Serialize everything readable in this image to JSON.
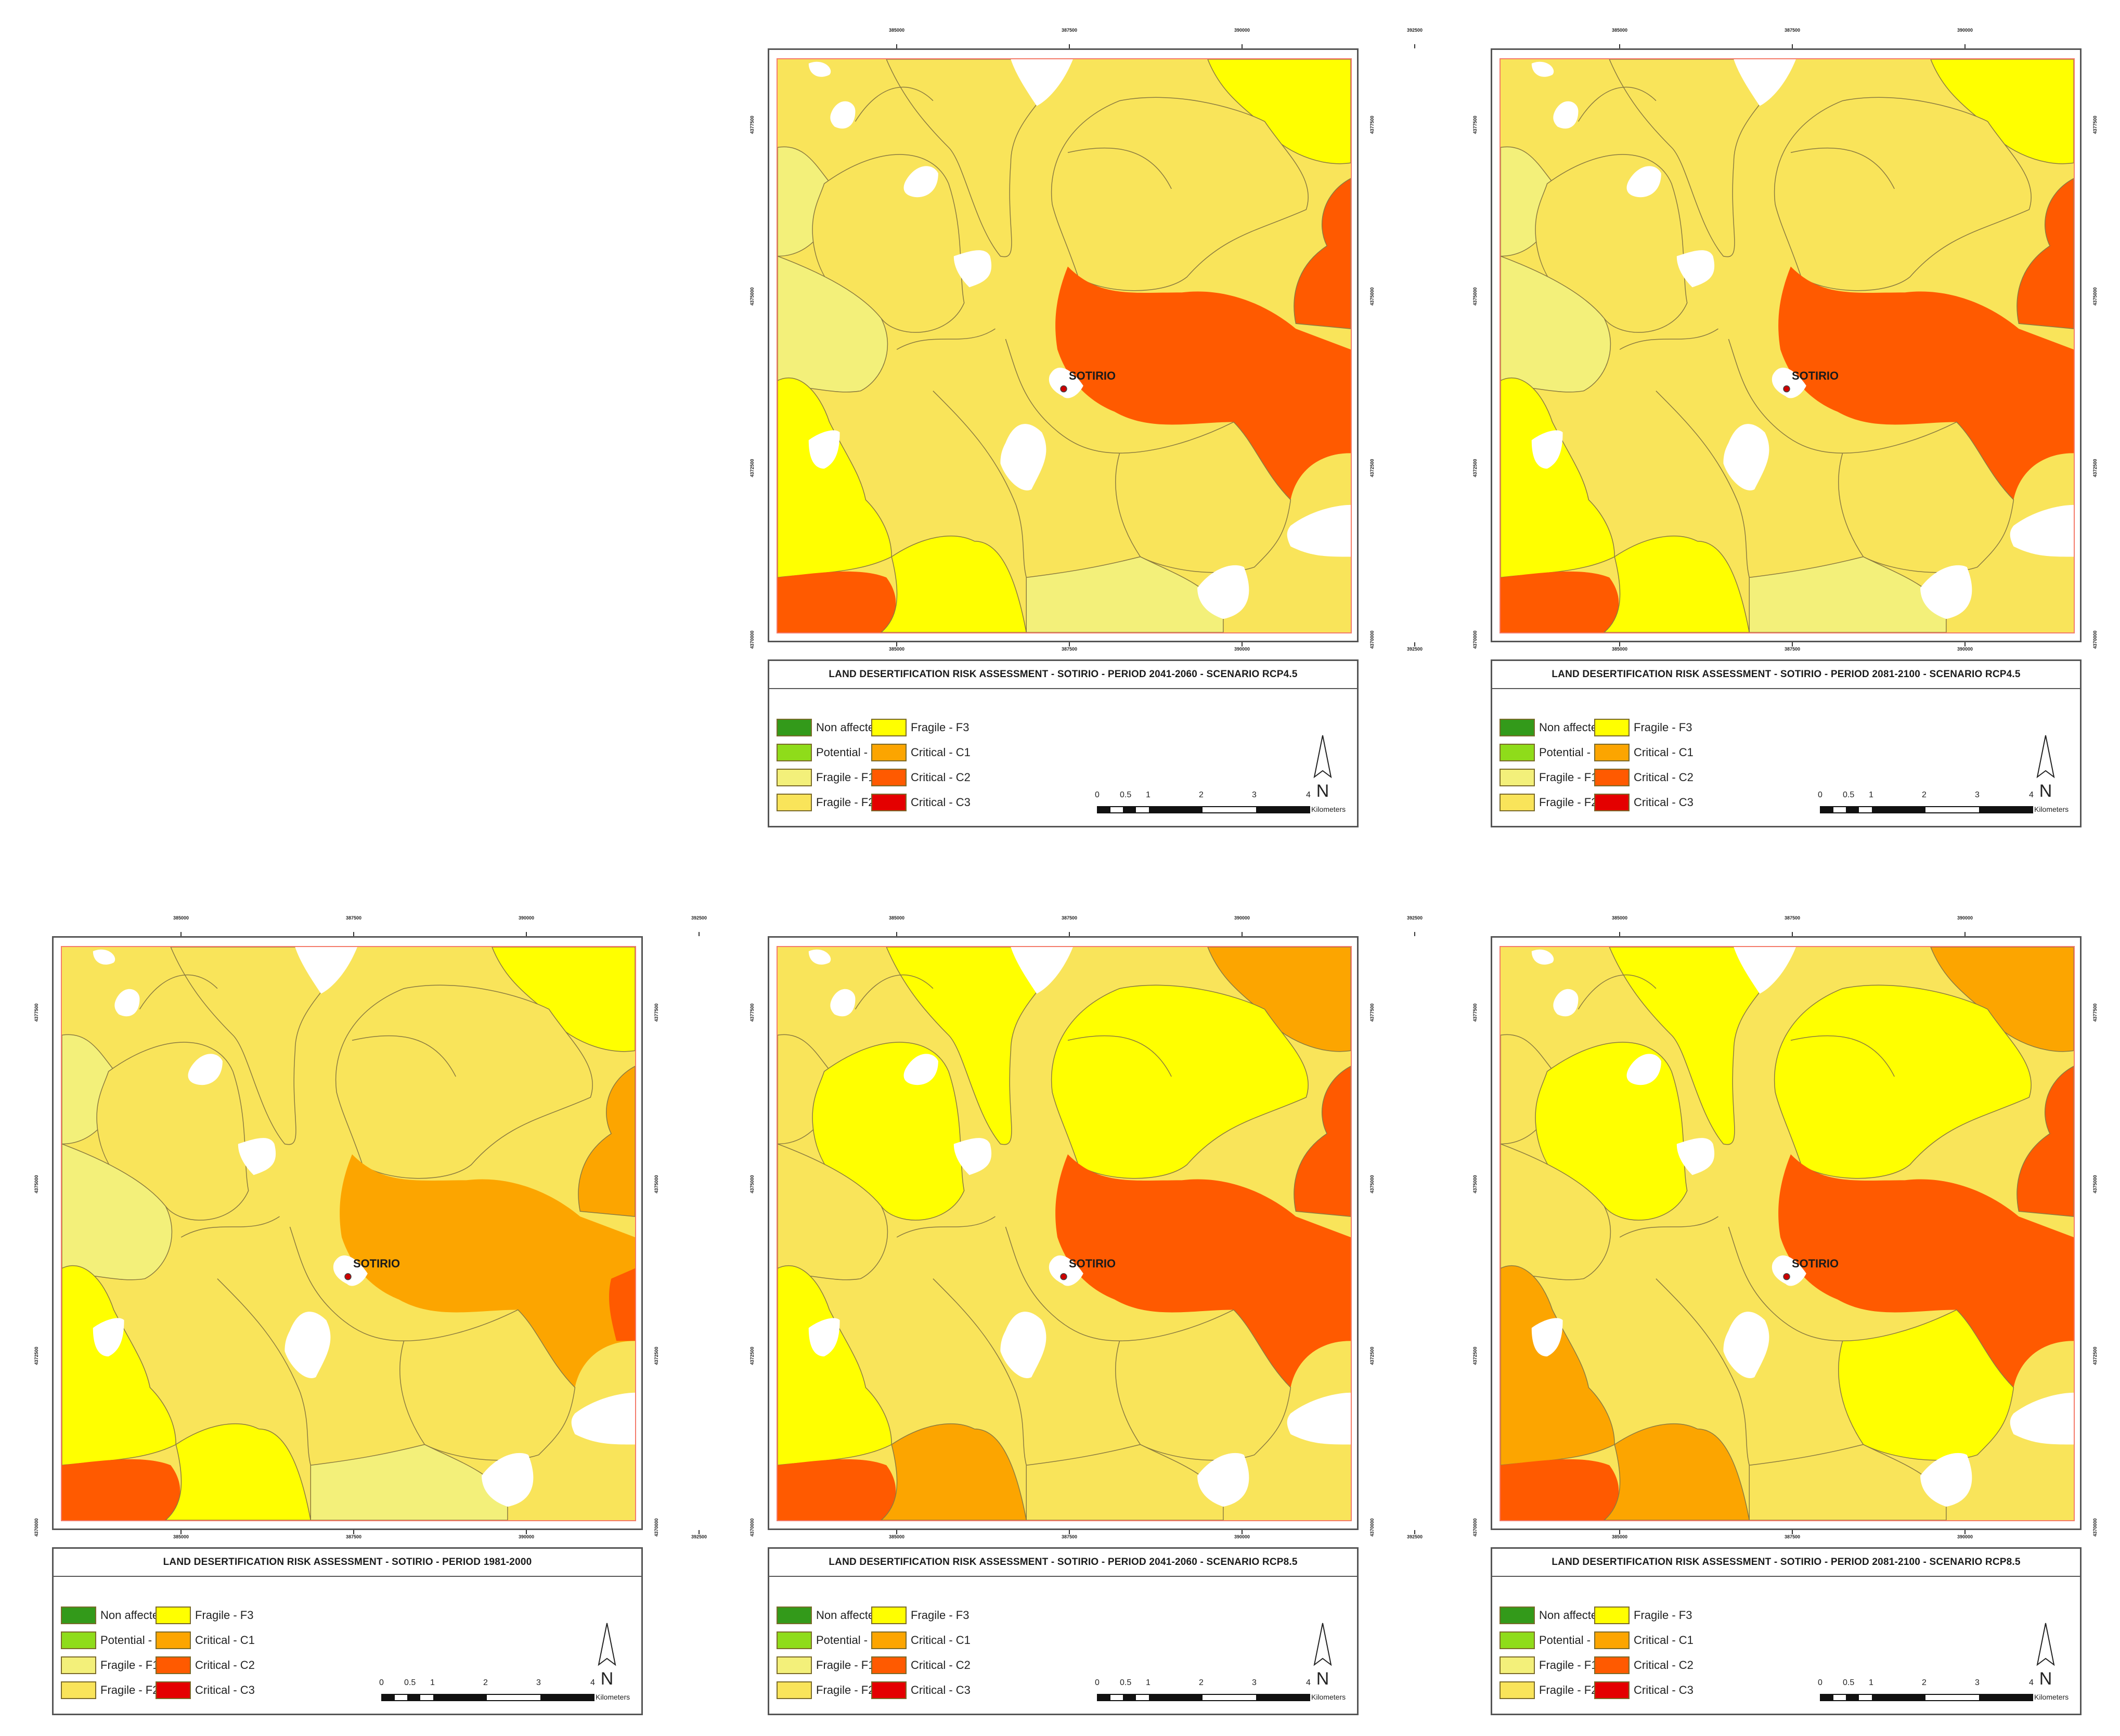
{
  "figure": {
    "common": {
      "x_ticks": [
        "385000",
        "387500",
        "390000",
        "392500"
      ],
      "y_ticks": [
        "4377500",
        "4375000",
        "4372500",
        "4370000"
      ],
      "place_label": "SOTIRIO",
      "north_label": "N",
      "scale": {
        "labels": [
          "0",
          "0.5",
          "1",
          "2",
          "3",
          "4"
        ],
        "unit": "Kilometers"
      },
      "legend": {
        "left_column": [
          {
            "label": "Non affected - N",
            "color": "#339a1a"
          },
          {
            "label": "Potential - P",
            "color": "#8fdc1a"
          },
          {
            "label": "Fragile - F1",
            "color": "#f3f07a"
          },
          {
            "label": "Fragile - F2",
            "color": "#f9e45a"
          }
        ],
        "right_column": [
          {
            "label": "Fragile - F3",
            "color": "#ffff00"
          },
          {
            "label": "Critical - C1",
            "color": "#fca500"
          },
          {
            "label": "Critical - C2",
            "color": "#ff5a00"
          },
          {
            "label": "Critical - C3",
            "color": "#e40000"
          }
        ]
      }
    },
    "panels": [
      {
        "id": "rcp45-2041",
        "title": "LAND DESERTIFICATION RISK ASSESSMENT - SOTIRIO - PERIOD 2041-2060 - SCENARIO RCP4.5"
      },
      {
        "id": "rcp45-2081",
        "title": "LAND DESERTIFICATION RISK ASSESSMENT - SOTIRIO - PERIOD 2081-2100 - SCENARIO RCP4.5"
      },
      {
        "id": "baseline-1981",
        "title": "LAND DESERTIFICATION RISK ASSESSMENT - SOTIRIO - PERIOD 1981-2000"
      },
      {
        "id": "rcp85-2041",
        "title": "LAND DESERTIFICATION RISK ASSESSMENT - SOTIRIO - PERIOD 2041-2060 - SCENARIO RCP8.5"
      },
      {
        "id": "rcp85-2081",
        "title": "LAND DESERTIFICATION RISK ASSESSMENT - SOTIRIO - PERIOD 2081-2100 - SCENARIO RCP8.5"
      }
    ]
  }
}
